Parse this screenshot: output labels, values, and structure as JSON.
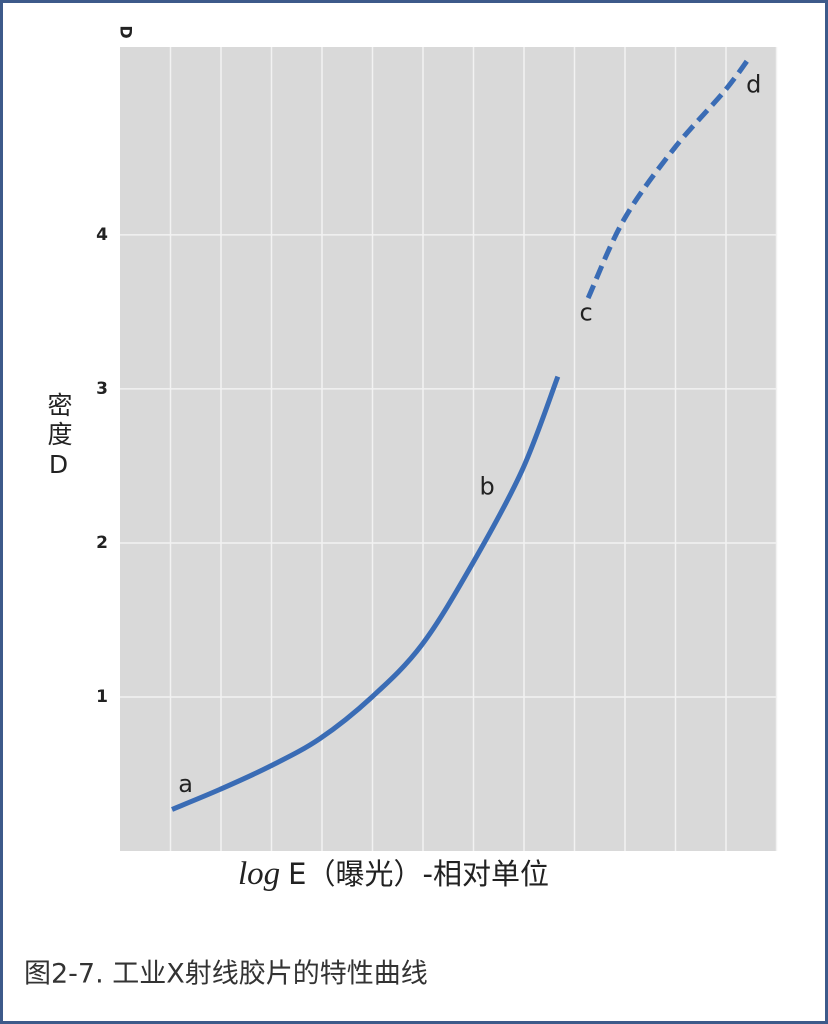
{
  "chart_data": {
    "type": "line",
    "caption": "图2-7. 工业X射线胶片的特性曲线",
    "top_label": "D",
    "ylabel": "密度D",
    "xlabel": {
      "math": "log",
      "text": "E（曝光）-相对单位"
    },
    "xlim": [
      0,
      13
    ],
    "xticks": [
      1,
      2,
      3,
      4,
      5,
      6,
      7,
      8,
      9,
      10,
      11,
      12,
      13
    ],
    "ylim": [
      0,
      5.22
    ],
    "yticks": [
      1,
      2,
      3,
      4
    ],
    "grid": true,
    "plot_background": "#d9d9d9",
    "series": [
      {
        "color": "#3a6cb5",
        "style": "solid",
        "x": [
          1.03,
          1.98,
          2.97,
          3.96,
          4.99,
          5.98,
          6.97,
          7.96,
          8.67
        ],
        "values": [
          0.27,
          0.4,
          0.55,
          0.73,
          1.0,
          1.34,
          1.86,
          2.47,
          3.08
        ]
      },
      {
        "color": "#3a6cb5",
        "style": "dashed",
        "x": [
          9.27,
          9.98,
          10.97,
          11.96,
          12.44
        ],
        "values": [
          3.59,
          4.1,
          4.56,
          4.93,
          5.14
        ]
      }
    ],
    "annotations": [
      {
        "text": "a",
        "x": 1.3,
        "y": 0.43
      },
      {
        "text": "b",
        "x": 7.27,
        "y": 2.36
      },
      {
        "text": "c",
        "x": 9.23,
        "y": 3.49
      },
      {
        "text": "d",
        "x": 12.55,
        "y": 4.97
      }
    ]
  }
}
